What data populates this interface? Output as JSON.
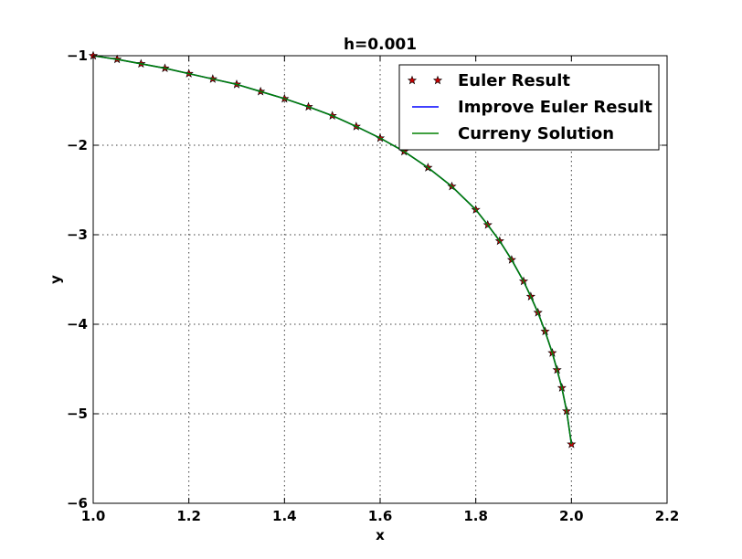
{
  "chart_data": {
    "type": "line",
    "title": "h=0.001",
    "xlabel": "x",
    "ylabel": "y",
    "xlim": [
      1.0,
      2.2
    ],
    "ylim": [
      -6,
      -1
    ],
    "xticks": [
      1.0,
      1.2,
      1.4,
      1.6,
      1.8,
      2.0,
      2.2
    ],
    "xtick_labels": [
      "1.0",
      "1.2",
      "1.4",
      "1.6",
      "1.8",
      "2.0",
      "2.2"
    ],
    "yticks": [
      -1,
      -2,
      -3,
      -4,
      -5,
      -6
    ],
    "ytick_labels": [
      "−1",
      "−2",
      "−3",
      "−4",
      "−5",
      "−6"
    ],
    "grid": true,
    "legend_position": "top-right",
    "series": [
      {
        "name": "Euler Result",
        "style": "markers",
        "marker": "star",
        "color": "#cc0000",
        "x": [
          1.0,
          1.05,
          1.1,
          1.15,
          1.2,
          1.25,
          1.3,
          1.35,
          1.4,
          1.45,
          1.5,
          1.55,
          1.6,
          1.65,
          1.7,
          1.75,
          1.8,
          1.825,
          1.85,
          1.875,
          1.9,
          1.915,
          1.93,
          1.945,
          1.96,
          1.97,
          1.98,
          1.99,
          2.0
        ],
        "y": [
          -1.0,
          -1.04,
          -1.09,
          -1.14,
          -1.2,
          -1.26,
          -1.32,
          -1.4,
          -1.48,
          -1.57,
          -1.67,
          -1.79,
          -1.92,
          -2.07,
          -2.25,
          -2.46,
          -2.72,
          -2.89,
          -3.07,
          -3.28,
          -3.52,
          -3.69,
          -3.87,
          -4.08,
          -4.32,
          -4.51,
          -4.71,
          -4.97,
          -5.34
        ]
      },
      {
        "name": "Improve Euler Result",
        "style": "line",
        "color": "#0000ff",
        "x": [
          1.0,
          1.05,
          1.1,
          1.15,
          1.2,
          1.25,
          1.3,
          1.35,
          1.4,
          1.45,
          1.5,
          1.55,
          1.6,
          1.65,
          1.7,
          1.75,
          1.8,
          1.825,
          1.85,
          1.875,
          1.9,
          1.915,
          1.93,
          1.945,
          1.96,
          1.97,
          1.98,
          1.99,
          2.0
        ],
        "y": [
          -1.0,
          -1.04,
          -1.09,
          -1.14,
          -1.2,
          -1.26,
          -1.32,
          -1.4,
          -1.48,
          -1.57,
          -1.67,
          -1.79,
          -1.92,
          -2.07,
          -2.25,
          -2.46,
          -2.72,
          -2.89,
          -3.07,
          -3.28,
          -3.52,
          -3.69,
          -3.87,
          -4.08,
          -4.32,
          -4.51,
          -4.71,
          -4.97,
          -5.34
        ]
      },
      {
        "name": "Curreny Solution",
        "style": "line",
        "color": "#008000",
        "x": [
          1.0,
          1.05,
          1.1,
          1.15,
          1.2,
          1.25,
          1.3,
          1.35,
          1.4,
          1.45,
          1.5,
          1.55,
          1.6,
          1.65,
          1.7,
          1.75,
          1.8,
          1.825,
          1.85,
          1.875,
          1.9,
          1.915,
          1.93,
          1.945,
          1.96,
          1.97,
          1.98,
          1.99,
          2.0
        ],
        "y": [
          -1.0,
          -1.04,
          -1.09,
          -1.14,
          -1.2,
          -1.26,
          -1.32,
          -1.4,
          -1.48,
          -1.57,
          -1.67,
          -1.79,
          -1.92,
          -2.07,
          -2.25,
          -2.46,
          -2.72,
          -2.89,
          -3.07,
          -3.28,
          -3.52,
          -3.69,
          -3.87,
          -4.08,
          -4.32,
          -4.51,
          -4.71,
          -4.97,
          -5.34
        ]
      }
    ]
  }
}
